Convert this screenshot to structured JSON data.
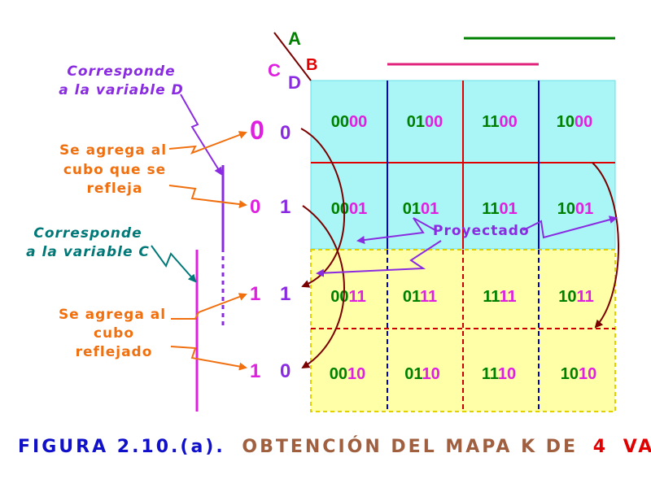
{
  "colors": {
    "cyan_fill": "#aaf5f5",
    "yellow_fill": "#ffffa8",
    "green": "#008000",
    "magenta": "#e020e0",
    "purple": "#8a2be2",
    "orange": "#f07010",
    "teal": "#007878",
    "brown": "#7a0000",
    "red": "#e00000",
    "blue": "#0000cc",
    "caption_blue": "#1010c8",
    "caption_brown": "#a06040"
  },
  "variables": {
    "A": "A",
    "B": "B",
    "C": "C",
    "D": "D"
  },
  "row_labels": [
    {
      "c": "0",
      "d": "0"
    },
    {
      "c": "0",
      "d": "1"
    },
    {
      "c": "1",
      "d": "1"
    },
    {
      "c": "1",
      "d": "0"
    }
  ],
  "cells": [
    [
      {
        "ab": "00",
        "cd": "00"
      },
      {
        "ab": "01",
        "cd": "00"
      },
      {
        "ab": "11",
        "cd": "00"
      },
      {
        "ab": "10",
        "cd": "00"
      }
    ],
    [
      {
        "ab": "00",
        "cd": "01"
      },
      {
        "ab": "01",
        "cd": "01"
      },
      {
        "ab": "11",
        "cd": "01"
      },
      {
        "ab": "10",
        "cd": "01"
      }
    ],
    [
      {
        "ab": "00",
        "cd": "11"
      },
      {
        "ab": "01",
        "cd": "11"
      },
      {
        "ab": "11",
        "cd": "11"
      },
      {
        "ab": "10",
        "cd": "11"
      }
    ],
    [
      {
        "ab": "00",
        "cd": "10"
      },
      {
        "ab": "01",
        "cd": "10"
      },
      {
        "ab": "11",
        "cd": "10"
      },
      {
        "ab": "10",
        "cd": "10"
      }
    ]
  ],
  "annotations": {
    "var_d_line1": "Corresponde",
    "var_d_line2": "a la variable D",
    "agrega_cubo_1": "Se agrega al",
    "agrega_cubo_2": "cubo que se",
    "agrega_cubo_3": "refleja",
    "var_c_line1": "Corresponde",
    "var_c_line2": "a la variable C",
    "agrega_refl_1": "Se agrega al",
    "agrega_refl_2": "cubo",
    "agrega_refl_3": "reflejado",
    "proyectado": "Proyectado"
  },
  "caption": {
    "figure": "FIGURA 2.10.(a).",
    "title": "OBTENCIÓN DEL MAPA K DE",
    "number": "4",
    "tail": "VARIABLES"
  }
}
